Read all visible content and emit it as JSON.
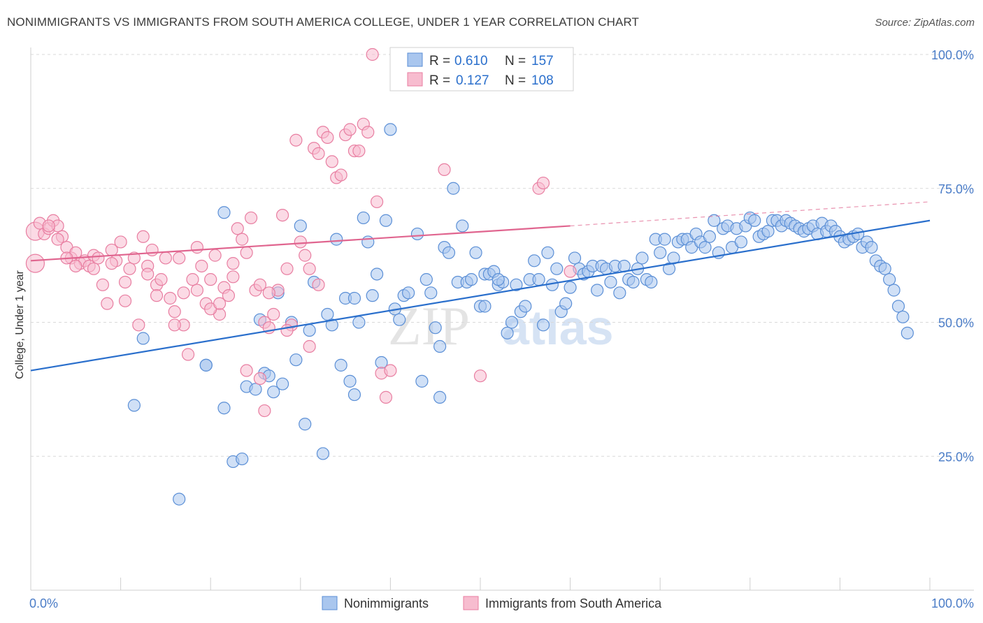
{
  "title": "NONIMMIGRANTS VS IMMIGRANTS FROM SOUTH AMERICA COLLEGE, UNDER 1 YEAR CORRELATION CHART",
  "source": "Source: ZipAtlas.com",
  "watermark": {
    "zip": "ZIP",
    "atlas": "atlas"
  },
  "colors": {
    "blue": "#5b8fd6",
    "blue_fill": "#a9c6ee",
    "blue_line": "#2a6fcc",
    "pink": "#e87ea1",
    "pink_fill": "#f7bccf",
    "pink_line": "#e0658f",
    "tick": "#4a7cc7"
  },
  "chart_data": {
    "type": "scatter",
    "title": "NONIMMIGRANTS VS IMMIGRANTS FROM SOUTH AMERICA COLLEGE, UNDER 1 YEAR CORRELATION CHART",
    "xlabel": "",
    "ylabel": "College, Under 1 year",
    "xlim": [
      0,
      100
    ],
    "ylim": [
      0,
      105
    ],
    "x_tick_labels": [
      "0.0%",
      "100.0%"
    ],
    "y_ticks": [
      25,
      50,
      75,
      100
    ],
    "y_tick_labels": [
      "25.0%",
      "50.0%",
      "75.0%",
      "100.0%"
    ],
    "grid": "horizontal dashed",
    "legend": {
      "placement": "top-center",
      "entries": [
        {
          "r_label": "R =",
          "r_value": "0.610",
          "n_label": "N =",
          "n_value": "157"
        },
        {
          "r_label": "R =",
          "r_value": "0.127",
          "n_label": "N =",
          "n_value": "108"
        }
      ]
    },
    "series": [
      {
        "name": "Nonimmigrants",
        "color": "#5b8fd6",
        "trend": {
          "x": [
            0,
            100
          ],
          "y": [
            41,
            69
          ]
        },
        "points": [
          [
            11.5,
            34.5
          ],
          [
            12.5,
            47
          ],
          [
            16.5,
            17
          ],
          [
            19.5,
            42
          ],
          [
            21.5,
            70.5
          ],
          [
            21.5,
            34
          ],
          [
            22.5,
            24
          ],
          [
            23.5,
            24.5
          ],
          [
            24,
            38
          ],
          [
            25,
            37.5
          ],
          [
            25.5,
            50.5
          ],
          [
            26,
            40.5
          ],
          [
            26.5,
            40
          ],
          [
            27,
            37
          ],
          [
            27.5,
            55.5
          ],
          [
            28,
            38.5
          ],
          [
            29,
            50
          ],
          [
            29.5,
            43
          ],
          [
            30,
            68
          ],
          [
            30.5,
            31
          ],
          [
            31,
            48.5
          ],
          [
            31.5,
            57.5
          ],
          [
            32.5,
            25.5
          ],
          [
            33,
            51.5
          ],
          [
            33.5,
            49.5
          ],
          [
            34,
            65.5
          ],
          [
            34.5,
            42
          ],
          [
            35,
            54.5
          ],
          [
            35.5,
            39
          ],
          [
            36,
            54.5
          ],
          [
            36.5,
            50
          ],
          [
            37,
            69.5
          ],
          [
            37.5,
            65
          ],
          [
            38,
            55
          ],
          [
            38.5,
            59
          ],
          [
            39,
            42.5
          ],
          [
            39.5,
            69
          ],
          [
            40,
            86
          ],
          [
            40.5,
            52.5
          ],
          [
            41,
            50.5
          ],
          [
            41.5,
            55
          ],
          [
            42,
            55.5
          ],
          [
            43,
            66.5
          ],
          [
            43.5,
            39
          ],
          [
            44,
            58
          ],
          [
            44.5,
            55.5
          ],
          [
            45,
            49
          ],
          [
            45.5,
            45.5
          ],
          [
            46,
            64
          ],
          [
            46.5,
            63
          ],
          [
            47,
            75
          ],
          [
            47.5,
            57.5
          ],
          [
            48,
            68
          ],
          [
            48.5,
            57.5
          ],
          [
            49,
            58
          ],
          [
            49.5,
            63
          ],
          [
            50,
            53
          ],
          [
            50.5,
            59
          ],
          [
            51,
            59
          ],
          [
            51.5,
            59.5
          ],
          [
            52,
            57
          ],
          [
            52.5,
            57.5
          ],
          [
            53,
            48
          ],
          [
            53.5,
            50
          ],
          [
            54,
            57
          ],
          [
            54.5,
            52
          ],
          [
            55,
            53
          ],
          [
            55.5,
            58
          ],
          [
            56,
            61.5
          ],
          [
            56.5,
            58
          ],
          [
            57,
            49.5
          ],
          [
            57.5,
            63
          ],
          [
            58,
            57
          ],
          [
            58.5,
            60
          ],
          [
            59,
            52
          ],
          [
            59.5,
            53.5
          ],
          [
            60,
            56.5
          ],
          [
            60.5,
            62
          ],
          [
            61,
            60
          ],
          [
            61.5,
            59
          ],
          [
            62,
            59.5
          ],
          [
            62.5,
            60.5
          ],
          [
            63,
            56
          ],
          [
            63.5,
            60.5
          ],
          [
            64,
            60
          ],
          [
            64.5,
            57.5
          ],
          [
            65,
            60.5
          ],
          [
            65.5,
            55.5
          ],
          [
            66,
            60.5
          ],
          [
            66.5,
            58
          ],
          [
            67,
            57.5
          ],
          [
            67.5,
            60
          ],
          [
            68,
            62
          ],
          [
            68.5,
            58
          ],
          [
            69,
            57.5
          ],
          [
            69.5,
            65.5
          ],
          [
            70,
            63
          ],
          [
            70.5,
            65.5
          ],
          [
            71,
            60
          ],
          [
            71.5,
            62
          ],
          [
            72,
            65
          ],
          [
            72.5,
            65.5
          ],
          [
            73,
            65.5
          ],
          [
            73.5,
            64
          ],
          [
            74,
            66.5
          ],
          [
            74.5,
            65
          ],
          [
            75,
            64
          ],
          [
            75.5,
            66
          ],
          [
            76,
            69
          ],
          [
            76.5,
            63
          ],
          [
            77,
            67.5
          ],
          [
            77.5,
            68
          ],
          [
            78,
            64
          ],
          [
            78.5,
            67.5
          ],
          [
            79,
            65
          ],
          [
            79.5,
            68
          ],
          [
            80,
            69.5
          ],
          [
            80.5,
            69
          ],
          [
            81,
            66
          ],
          [
            81.5,
            66.5
          ],
          [
            82,
            67
          ],
          [
            82.5,
            69
          ],
          [
            83,
            69
          ],
          [
            83.5,
            68
          ],
          [
            84,
            69
          ],
          [
            84.5,
            68.5
          ],
          [
            85,
            68
          ],
          [
            85.5,
            67.5
          ],
          [
            86,
            67
          ],
          [
            86.5,
            67.5
          ],
          [
            87,
            68
          ],
          [
            87.5,
            66.5
          ],
          [
            88,
            68.5
          ],
          [
            88.5,
            67
          ],
          [
            89,
            68
          ],
          [
            89.5,
            67
          ],
          [
            90,
            66
          ],
          [
            90.5,
            65
          ],
          [
            91,
            65.5
          ],
          [
            91.5,
            66
          ],
          [
            92,
            66.5
          ],
          [
            92.5,
            64
          ],
          [
            93,
            65
          ],
          [
            93.5,
            64
          ],
          [
            94,
            61.5
          ],
          [
            94.5,
            60.5
          ],
          [
            95,
            60
          ],
          [
            95.5,
            58
          ],
          [
            96,
            56
          ],
          [
            96.5,
            53
          ],
          [
            97,
            51
          ],
          [
            97.5,
            48
          ],
          [
            19.5,
            42
          ],
          [
            45.5,
            36
          ],
          [
            52,
            58
          ],
          [
            36,
            36.5
          ],
          [
            50.5,
            53
          ]
        ]
      },
      {
        "name": "Immigrants from South America",
        "color": "#e87ea1",
        "trend": {
          "x": [
            0,
            60
          ],
          "y": [
            61.5,
            68
          ]
        },
        "trend_extended": {
          "x": [
            60,
            100
          ],
          "y": [
            68,
            72.5
          ]
        },
        "points": [
          [
            0.5,
            67
          ],
          [
            0.5,
            61
          ],
          [
            1,
            68.5
          ],
          [
            1.5,
            66.5
          ],
          [
            2,
            67.5
          ],
          [
            2.5,
            69
          ],
          [
            3,
            68
          ],
          [
            3.5,
            66
          ],
          [
            4,
            64
          ],
          [
            4.5,
            62
          ],
          [
            5,
            63
          ],
          [
            5.5,
            61
          ],
          [
            6,
            61.5
          ],
          [
            6.5,
            60.5
          ],
          [
            7,
            62.5
          ],
          [
            7.5,
            62
          ],
          [
            8,
            57
          ],
          [
            8.5,
            53.5
          ],
          [
            9,
            63.5
          ],
          [
            9.5,
            61.5
          ],
          [
            10,
            65
          ],
          [
            10.5,
            57.5
          ],
          [
            11,
            60
          ],
          [
            11.5,
            62
          ],
          [
            12,
            49.5
          ],
          [
            12.5,
            66
          ],
          [
            13,
            60.5
          ],
          [
            13.5,
            63.5
          ],
          [
            14,
            57
          ],
          [
            14.5,
            58
          ],
          [
            15,
            62
          ],
          [
            15.5,
            54.5
          ],
          [
            16,
            52
          ],
          [
            16.5,
            62
          ],
          [
            17,
            49.5
          ],
          [
            17.5,
            44
          ],
          [
            18,
            58
          ],
          [
            18.5,
            56
          ],
          [
            19,
            60.5
          ],
          [
            19.5,
            53.5
          ],
          [
            20,
            58
          ],
          [
            20.5,
            62.5
          ],
          [
            21,
            51.5
          ],
          [
            21.5,
            56.5
          ],
          [
            22,
            55
          ],
          [
            22.5,
            58.5
          ],
          [
            23,
            67.5
          ],
          [
            23.5,
            65.5
          ],
          [
            24,
            63
          ],
          [
            24.5,
            69.5
          ],
          [
            25,
            56
          ],
          [
            25.5,
            57
          ],
          [
            26,
            50
          ],
          [
            26.5,
            49
          ],
          [
            27,
            51.5
          ],
          [
            27.5,
            56
          ],
          [
            28,
            70
          ],
          [
            28.5,
            60
          ],
          [
            29,
            49.5
          ],
          [
            29.5,
            84
          ],
          [
            30,
            65
          ],
          [
            30.5,
            62.5
          ],
          [
            31,
            60
          ],
          [
            31.5,
            82.5
          ],
          [
            32,
            81.5
          ],
          [
            32.5,
            85.5
          ],
          [
            33,
            84.5
          ],
          [
            33.5,
            80
          ],
          [
            34,
            77
          ],
          [
            34.5,
            77.5
          ],
          [
            35,
            85
          ],
          [
            35.5,
            86
          ],
          [
            36,
            82
          ],
          [
            36.5,
            82
          ],
          [
            37,
            87
          ],
          [
            37.5,
            85.5
          ],
          [
            38,
            100
          ],
          [
            38.5,
            72.5
          ],
          [
            39,
            40.5
          ],
          [
            39.5,
            36
          ],
          [
            40,
            41
          ],
          [
            46,
            78.5
          ],
          [
            50,
            40
          ],
          [
            56.5,
            75
          ],
          [
            57,
            76
          ],
          [
            60,
            59.5
          ],
          [
            31,
            45.5
          ],
          [
            24,
            41
          ],
          [
            25.5,
            39.5
          ],
          [
            26,
            33.5
          ],
          [
            28.5,
            48.5
          ],
          [
            16,
            49.5
          ],
          [
            13,
            59
          ],
          [
            9,
            61
          ],
          [
            3,
            65.5
          ],
          [
            5,
            60.5
          ],
          [
            14,
            55
          ],
          [
            17,
            55.5
          ],
          [
            20,
            52.5
          ],
          [
            21,
            53.5
          ],
          [
            18.5,
            64
          ],
          [
            22.5,
            61
          ],
          [
            26.5,
            55.5
          ],
          [
            32,
            57
          ],
          [
            10.5,
            54
          ],
          [
            7,
            60
          ],
          [
            4,
            62
          ],
          [
            2,
            68
          ]
        ]
      }
    ]
  },
  "bottom_legend": [
    {
      "label": "Nonimmigrants"
    },
    {
      "label": "Immigrants from South America"
    }
  ]
}
